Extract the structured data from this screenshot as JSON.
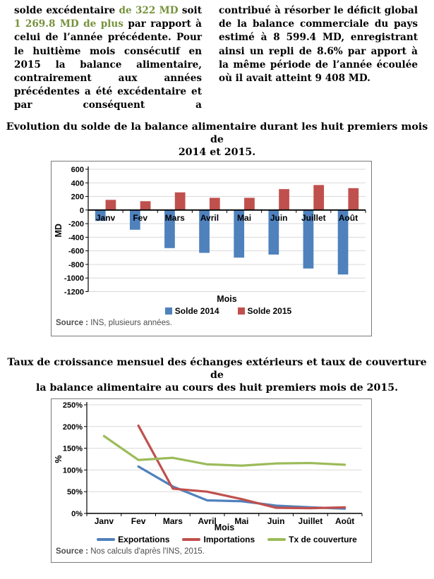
{
  "intro": {
    "highlight_color": "#76923C",
    "col1": {
      "s1": "solde excédentaire ",
      "s2": "de 322 MD",
      "s3": " soit ",
      "s4": "1 269.8 MD de plus",
      "s5": " par rapport à celui de l’année précédente. Pour le huitième mois consécutif en 2015 la balance alimentaire, contrairement aux années précédentes a été excédentaire et par conséquent a"
    },
    "col2": "contribué à résorber le déficit global de la balance commerciale du pays estimé à 8 599.4 MD, enregistrant ainsi un repli de 8.6% par apport à la même période de l’année écoulée où il avait atteint 9 408 MD."
  },
  "chart_data": [
    {
      "type": "bar",
      "title": "Evolution du solde de la balance alimentaire durant les huit premiers mois de 2014 et 2015.",
      "title_lines": [
        "Evolution du solde de la balance alimentaire durant les huit premiers mois de",
        "2014 et 2015."
      ],
      "categories": [
        "Janv",
        "Fev",
        "Mars",
        "Avril",
        "Mai",
        "Juin",
        "Juillet",
        "Août"
      ],
      "series": [
        {
          "name": "Solde 2014",
          "color": "#4F81BD",
          "values": [
            -160,
            -290,
            -560,
            -630,
            -700,
            -655,
            -860,
            -948
          ]
        },
        {
          "name": "Solde 2015",
          "color": "#C0504D",
          "values": [
            150,
            130,
            260,
            180,
            180,
            308,
            368,
            322
          ]
        }
      ],
      "xlabel": "Mois",
      "ylabel": "MD",
      "ylim": [
        -1200,
        600
      ],
      "ytick_step": 200,
      "ytick_suffix": "",
      "grid": true,
      "legend_position": "bottom",
      "source_label": "Source :",
      "source_text": " INS, plusieurs années."
    },
    {
      "type": "line",
      "title": "Taux de croissance mensuel des échanges extérieurs et taux de couverture de la balance alimentaire au cours des huit premiers mois de 2015.",
      "title_lines": [
        "Taux de croissance mensuel des échanges extérieurs et taux de couverture de",
        "la balance alimentaire au cours des huit premiers mois de 2015."
      ],
      "categories": [
        "Janv",
        "Fev",
        "Mars",
        "Avril",
        "Mai",
        "Juin",
        "Juillet",
        "Août"
      ],
      "series": [
        {
          "name": "Exportations",
          "color": "#4F81BD",
          "values": [
            null,
            108,
            62,
            30,
            28,
            18,
            14,
            11
          ]
        },
        {
          "name": "Importations",
          "color": "#C0504D",
          "values": [
            null,
            202,
            57,
            50,
            33,
            13,
            12,
            14
          ]
        },
        {
          "name": "Tx de couverture",
          "color": "#9BBB59",
          "values": [
            178,
            123,
            128,
            113,
            110,
            115,
            116,
            112
          ]
        }
      ],
      "xlabel": "Mois",
      "ylabel": "%",
      "ylim": [
        0,
        250
      ],
      "ytick_step": 50,
      "ytick_suffix": "%",
      "grid": true,
      "legend_position": "bottom",
      "source_label": "Source :",
      "source_text": " Nos calculs d'après l'INS, 2015."
    }
  ]
}
